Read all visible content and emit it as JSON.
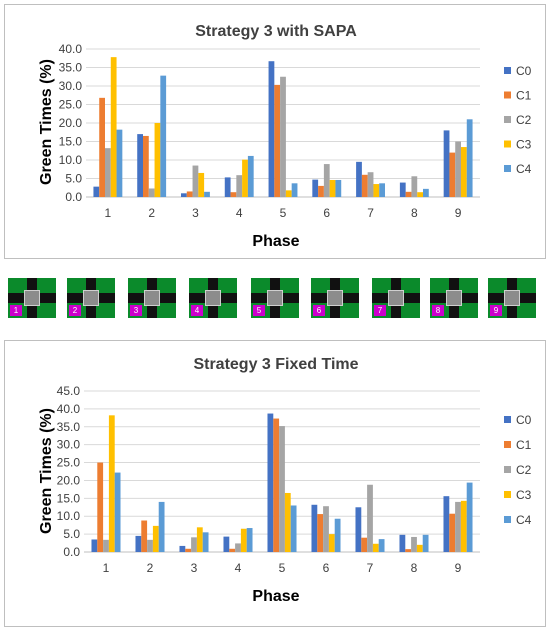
{
  "charts": [
    {
      "title": "Strategy 3 with SAPA",
      "xlabel": "Phase",
      "ylabel": "Green Times (%)"
    },
    {
      "title": "Strategy 3 Fixed Time",
      "xlabel": "Phase",
      "ylabel": "Green Times (%)"
    }
  ],
  "colors": {
    "C0": "#4472c4",
    "C1": "#ed7d31",
    "C2": "#a5a5a5",
    "C3": "#ffc000",
    "C4": "#5b9bd5"
  },
  "phase_thumbnails": [
    "1",
    "2",
    "3",
    "4",
    "5",
    "6",
    "7",
    "8",
    "9"
  ],
  "chart_data": [
    {
      "type": "bar",
      "title": "Strategy 3 with SAPA",
      "xlabel": "Phase",
      "ylabel": "Green Times (%)",
      "categories": [
        "1",
        "2",
        "3",
        "4",
        "5",
        "6",
        "7",
        "8",
        "9"
      ],
      "ylim": [
        0,
        40
      ],
      "yticks": [
        "0.0",
        "5.0",
        "10.0",
        "15.0",
        "20.0",
        "25.0",
        "30.0",
        "35.0",
        "40.0"
      ],
      "grid": true,
      "legend": "right",
      "series": [
        {
          "name": "C0",
          "values": [
            2.8,
            17.0,
            1.0,
            5.3,
            36.7,
            4.7,
            9.5,
            3.9,
            18.0
          ]
        },
        {
          "name": "C1",
          "values": [
            26.8,
            16.5,
            1.5,
            1.3,
            30.3,
            3.0,
            6.0,
            1.4,
            12.0
          ]
        },
        {
          "name": "C2",
          "values": [
            13.2,
            2.3,
            8.5,
            5.9,
            32.5,
            8.9,
            6.7,
            5.6,
            15.0
          ]
        },
        {
          "name": "C3",
          "values": [
            37.8,
            20.0,
            6.5,
            10.1,
            1.8,
            4.6,
            3.5,
            1.3,
            13.5
          ]
        },
        {
          "name": "C4",
          "values": [
            18.2,
            32.8,
            1.4,
            11.1,
            3.7,
            4.6,
            3.7,
            2.2,
            21.0
          ]
        }
      ]
    },
    {
      "type": "bar",
      "title": "Strategy 3 Fixed Time",
      "xlabel": "Phase",
      "ylabel": "Green Times (%)",
      "categories": [
        "1",
        "2",
        "3",
        "4",
        "5",
        "6",
        "7",
        "8",
        "9"
      ],
      "ylim": [
        0,
        45
      ],
      "yticks": [
        "0.0",
        "5.0",
        "10.0",
        "15.0",
        "20.0",
        "25.0",
        "30.0",
        "35.0",
        "40.0",
        "45.0"
      ],
      "grid": true,
      "legend": "right",
      "series": [
        {
          "name": "C0",
          "values": [
            3.5,
            4.5,
            1.7,
            4.3,
            38.7,
            13.2,
            12.5,
            4.8,
            15.6
          ]
        },
        {
          "name": "C1",
          "values": [
            25.0,
            8.8,
            0.9,
            0.9,
            37.3,
            10.6,
            4.0,
            0.8,
            10.7
          ]
        },
        {
          "name": "C2",
          "values": [
            3.4,
            3.4,
            4.1,
            2.4,
            35.2,
            12.8,
            18.8,
            4.2,
            14.0
          ]
        },
        {
          "name": "C3",
          "values": [
            38.2,
            7.3,
            6.9,
            6.5,
            16.5,
            5.0,
            2.3,
            2.0,
            14.3
          ]
        },
        {
          "name": "C4",
          "values": [
            22.2,
            14.0,
            5.5,
            6.7,
            13.0,
            9.3,
            3.6,
            4.8,
            19.4
          ]
        }
      ]
    }
  ]
}
